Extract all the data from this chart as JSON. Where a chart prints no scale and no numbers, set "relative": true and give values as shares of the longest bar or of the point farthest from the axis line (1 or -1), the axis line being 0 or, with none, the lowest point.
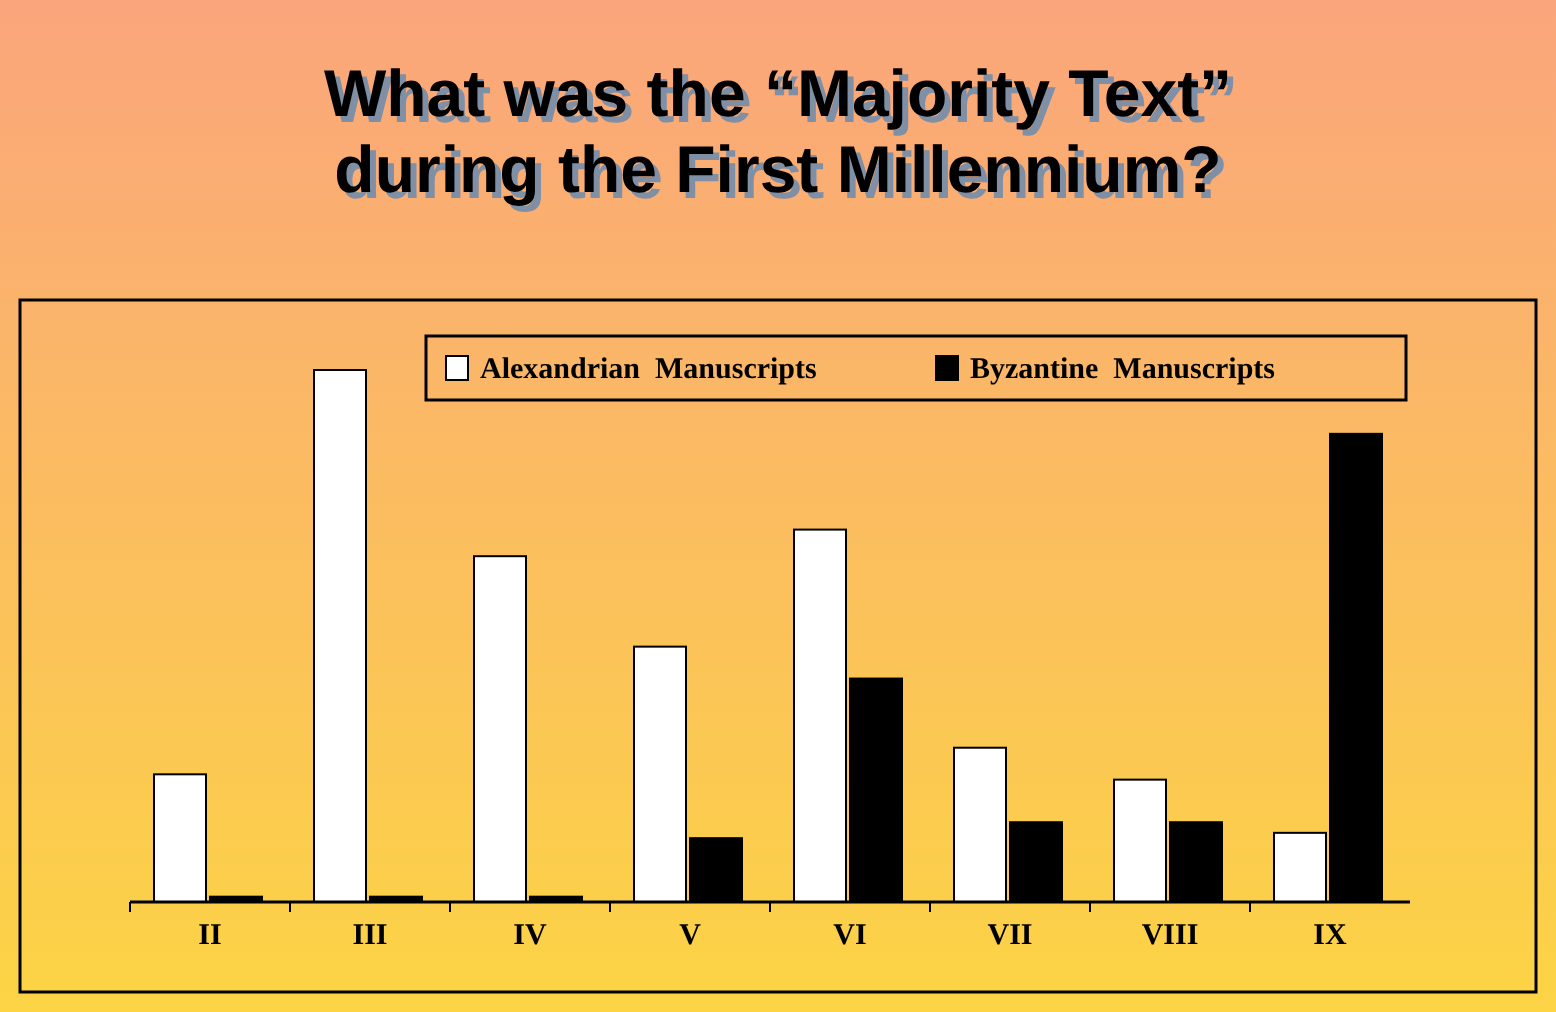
{
  "chart_data": {
    "type": "bar",
    "title": "What was the “Majority Text”\nduring the First Millennium?",
    "relative": true,
    "categories": [
      "II",
      "III",
      "IV",
      "V",
      "VI",
      "VII",
      "VIII",
      "IX"
    ],
    "series": [
      {
        "name": "Alexandrian  Manuscripts",
        "color": "#ffffff",
        "values": [
          0.24,
          1,
          0.65,
          0.48,
          0.7,
          0.29,
          0.23,
          0.13
        ]
      },
      {
        "name": "Byzantine  Manuscripts",
        "color": "#000000",
        "values": [
          0.01,
          0.01,
          0.01,
          0.12,
          0.42,
          0.15,
          0.15,
          0.88
        ]
      }
    ],
    "legend": "top right"
  }
}
